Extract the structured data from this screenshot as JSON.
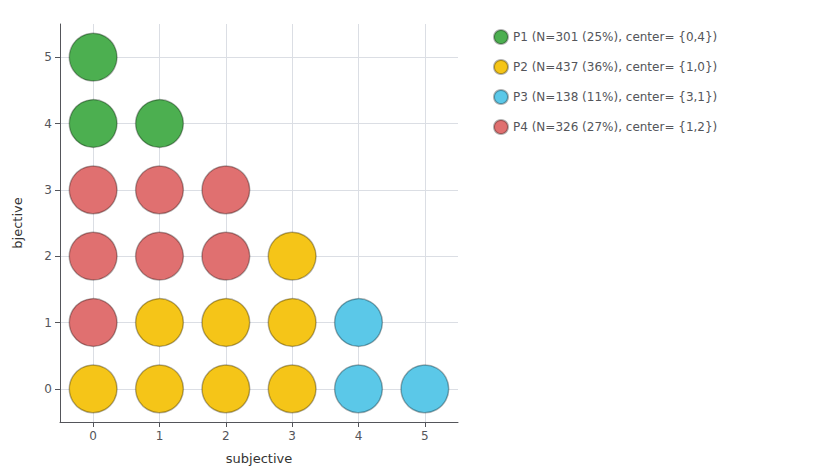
{
  "chart_data": {
    "type": "scatter",
    "xlabel": "subjective",
    "ylabel": "bjective",
    "xlim": [
      -0.5,
      5.5
    ],
    "ylim": [
      -0.5,
      5.5
    ],
    "xticks": [
      0,
      1,
      2,
      3,
      4,
      5
    ],
    "yticks": [
      0,
      1,
      2,
      3,
      4,
      5
    ],
    "grid": true,
    "legend": "right",
    "marker": "circle",
    "series": [
      {
        "name": "P1 (N=301 (25%), center= {0,4})",
        "color": "#4caf50",
        "x": [
          0,
          0,
          1
        ],
        "values": [
          5,
          4,
          4
        ]
      },
      {
        "name": "P2 (N=437 (36%), center= {1,0})",
        "color": "#f5c518",
        "x": [
          3,
          1,
          2,
          3,
          0,
          1,
          2,
          3
        ],
        "values": [
          2,
          1,
          1,
          1,
          0,
          0,
          0,
          0
        ]
      },
      {
        "name": "P3 (N=138 (11%), center= {3,1})",
        "color": "#5bc8e8",
        "x": [
          4,
          4,
          5
        ],
        "values": [
          1,
          0,
          0
        ]
      },
      {
        "name": "P4 (N=326 (27%), center= {1,2})",
        "color": "#e07070",
        "x": [
          0,
          1,
          2,
          0,
          1,
          2,
          0
        ],
        "values": [
          3,
          3,
          3,
          2,
          2,
          2,
          1
        ]
      }
    ]
  }
}
